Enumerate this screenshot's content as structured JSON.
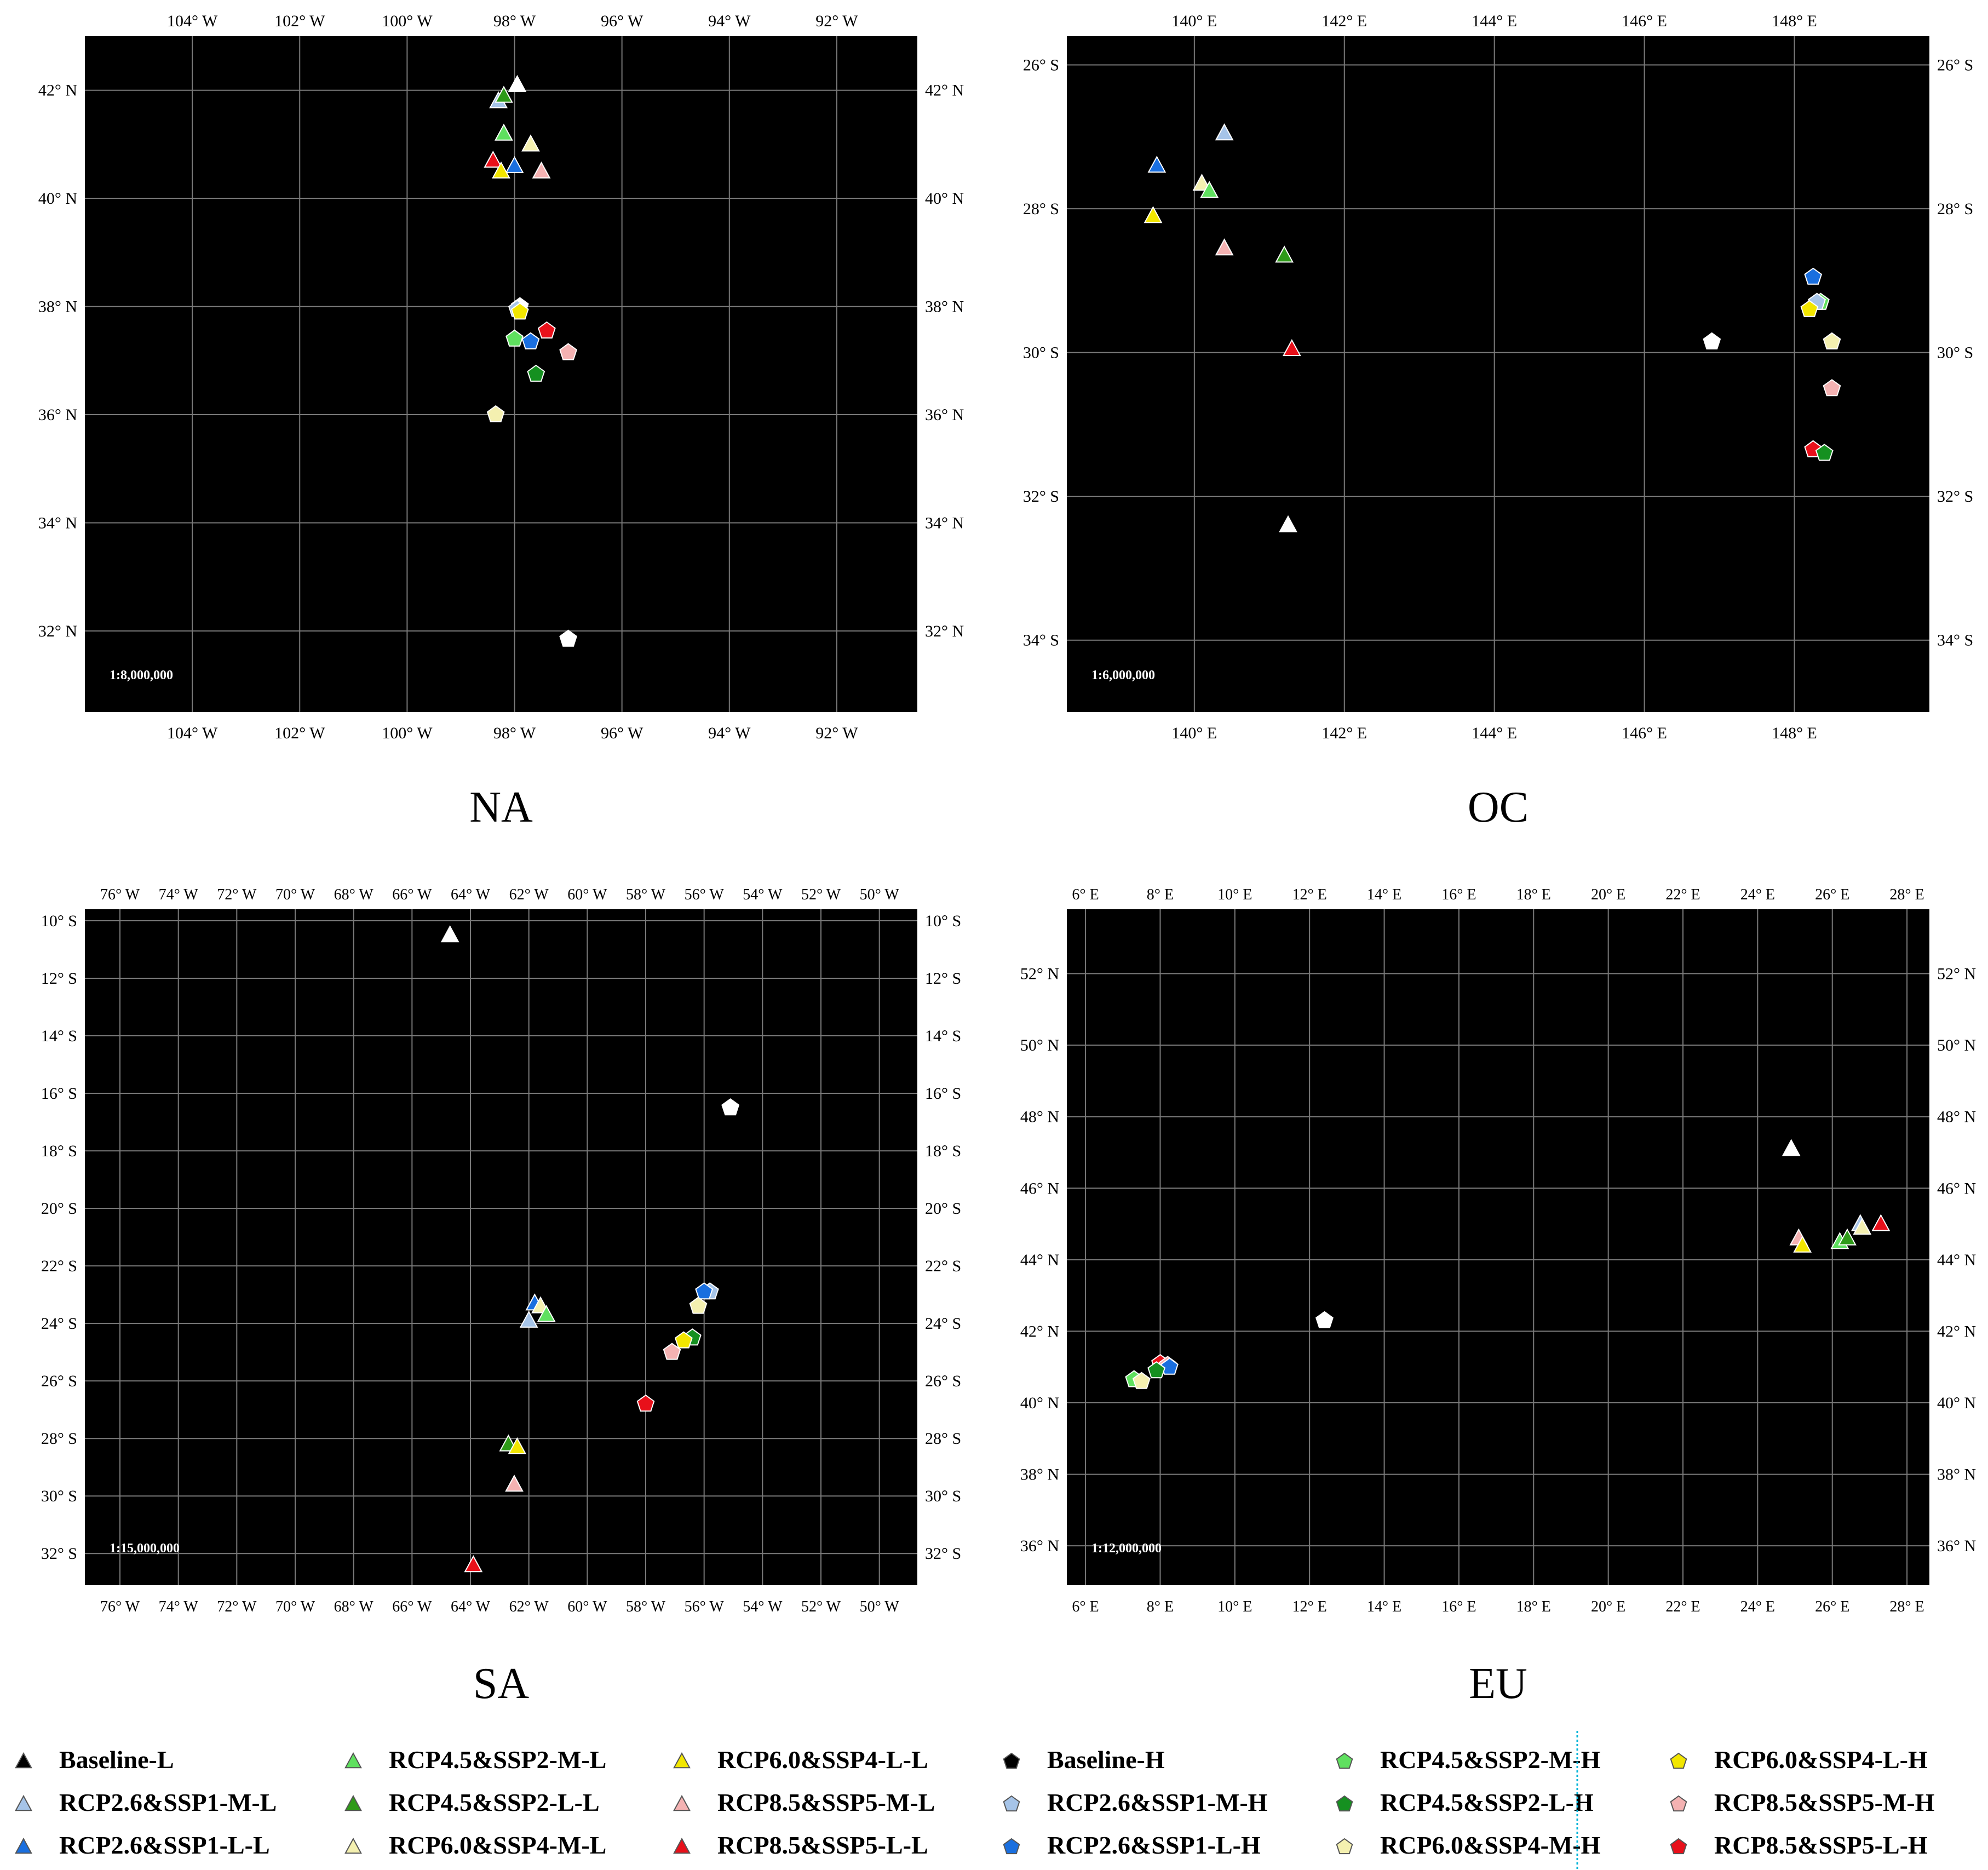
{
  "chart_data": [
    {
      "type": "scatter",
      "title": "NA",
      "scale_text": "1:8,000,000",
      "lon_range": [
        -106,
        -90.5
      ],
      "lat_range": [
        30.5,
        43
      ],
      "lon_ticks": [
        {
          "v": -104,
          "label": "104° W"
        },
        {
          "v": -102,
          "label": "102° W"
        },
        {
          "v": -100,
          "label": "100° W"
        },
        {
          "v": -98,
          "label": "98° W"
        },
        {
          "v": -96,
          "label": "96° W"
        },
        {
          "v": -94,
          "label": "94° W"
        },
        {
          "v": -92,
          "label": "92° W"
        }
      ],
      "lat_ticks": [
        {
          "v": 32,
          "label": "32° N"
        },
        {
          "v": 34,
          "label": "34° N"
        },
        {
          "v": 36,
          "label": "36° N"
        },
        {
          "v": 38,
          "label": "38° N"
        },
        {
          "v": 40,
          "label": "40° N"
        },
        {
          "v": 42,
          "label": "42° N"
        }
      ],
      "points": [
        {
          "s": "Baseline-L",
          "lon": -97.95,
          "lat": 42.1
        },
        {
          "s": "RCP2.6&SSP1-M-L",
          "lon": -98.3,
          "lat": 41.8
        },
        {
          "s": "RCP4.5&SSP2-L-L",
          "lon": -98.2,
          "lat": 41.9
        },
        {
          "s": "RCP4.5&SSP2-M-L",
          "lon": -98.2,
          "lat": 41.2
        },
        {
          "s": "RCP6.0&SSP4-M-L",
          "lon": -97.7,
          "lat": 41.0
        },
        {
          "s": "RCP8.5&SSP5-L-L",
          "lon": -98.4,
          "lat": 40.7
        },
        {
          "s": "RCP2.6&SSP1-L-L",
          "lon": -98.0,
          "lat": 40.6
        },
        {
          "s": "RCP6.0&SSP4-L-L",
          "lon": -98.25,
          "lat": 40.5
        },
        {
          "s": "RCP8.5&SSP5-M-L",
          "lon": -97.5,
          "lat": 40.5
        },
        {
          "s": "Baseline-H",
          "lon": -97.9,
          "lat": 38.0
        },
        {
          "s": "RCP2.6&SSP1-M-H",
          "lon": -97.95,
          "lat": 37.95
        },
        {
          "s": "RCP6.0&SSP4-L-H",
          "lon": -97.9,
          "lat": 37.9
        },
        {
          "s": "RCP8.5&SSP5-L-H",
          "lon": -97.4,
          "lat": 37.55
        },
        {
          "s": "RCP4.5&SSP2-M-H",
          "lon": -98.0,
          "lat": 37.4
        },
        {
          "s": "RCP2.6&SSP1-L-H",
          "lon": -97.7,
          "lat": 37.35
        },
        {
          "s": "RCP8.5&SSP5-M-H",
          "lon": -97.0,
          "lat": 37.15
        },
        {
          "s": "RCP4.5&SSP2-L-H",
          "lon": -97.6,
          "lat": 36.75
        },
        {
          "s": "RCP6.0&SSP4-M-H",
          "lon": -98.35,
          "lat": 36.0
        },
        {
          "s": "Baseline-H",
          "lon": -97.0,
          "lat": 31.85
        }
      ]
    },
    {
      "type": "scatter",
      "title": "OC",
      "scale_text": "1:6,000,000",
      "lon_range": [
        138.3,
        149.8
      ],
      "lat_range": [
        -35,
        -25.6
      ],
      "lon_ticks": [
        {
          "v": 140,
          "label": "140° E"
        },
        {
          "v": 142,
          "label": "142° E"
        },
        {
          "v": 144,
          "label": "144° E"
        },
        {
          "v": 146,
          "label": "146° E"
        },
        {
          "v": 148,
          "label": "148° E"
        }
      ],
      "lat_ticks": [
        {
          "v": -26,
          "label": "26° S"
        },
        {
          "v": -28,
          "label": "28° S"
        },
        {
          "v": -30,
          "label": "30° S"
        },
        {
          "v": -32,
          "label": "32° S"
        },
        {
          "v": -34,
          "label": "34° S"
        }
      ],
      "points": [
        {
          "s": "RCP2.6&SSP1-M-L",
          "lon": 140.4,
          "lat": -26.95
        },
        {
          "s": "RCP2.6&SSP1-L-L",
          "lon": 139.5,
          "lat": -27.4
        },
        {
          "s": "RCP6.0&SSP4-M-L",
          "lon": 140.1,
          "lat": -27.65
        },
        {
          "s": "RCP4.5&SSP2-M-L",
          "lon": 140.2,
          "lat": -27.75
        },
        {
          "s": "RCP6.0&SSP4-L-L",
          "lon": 139.45,
          "lat": -28.1
        },
        {
          "s": "RCP8.5&SSP5-M-L",
          "lon": 140.4,
          "lat": -28.55
        },
        {
          "s": "RCP4.5&SSP2-L-L",
          "lon": 141.2,
          "lat": -28.65
        },
        {
          "s": "RCP8.5&SSP5-L-L",
          "lon": 141.3,
          "lat": -29.95
        },
        {
          "s": "Baseline-L",
          "lon": 141.25,
          "lat": -32.4
        },
        {
          "s": "RCP2.6&SSP1-L-H",
          "lon": 148.25,
          "lat": -28.95
        },
        {
          "s": "RCP4.5&SSP2-M-H",
          "lon": 148.35,
          "lat": -29.3
        },
        {
          "s": "RCP2.6&SSP1-M-H",
          "lon": 148.3,
          "lat": -29.3
        },
        {
          "s": "RCP6.0&SSP4-L-H",
          "lon": 148.2,
          "lat": -29.4
        },
        {
          "s": "Baseline-H",
          "lon": 146.9,
          "lat": -29.85
        },
        {
          "s": "RCP6.0&SSP4-M-H",
          "lon": 148.5,
          "lat": -29.85
        },
        {
          "s": "RCP8.5&SSP5-M-H",
          "lon": 148.5,
          "lat": -30.5
        },
        {
          "s": "RCP8.5&SSP5-L-H",
          "lon": 148.25,
          "lat": -31.35
        },
        {
          "s": "RCP4.5&SSP2-L-H",
          "lon": 148.4,
          "lat": -31.4
        }
      ]
    },
    {
      "type": "scatter",
      "title": "SA",
      "scale_text": "1:15,000,000",
      "lon_range": [
        -77.2,
        -48.7
      ],
      "lat_range": [
        -33.1,
        -9.6
      ],
      "lon_ticks": [
        {
          "v": -76,
          "label": "76° W"
        },
        {
          "v": -74,
          "label": "74° W"
        },
        {
          "v": -72,
          "label": "72° W"
        },
        {
          "v": -70,
          "label": "70° W"
        },
        {
          "v": -68,
          "label": "68° W"
        },
        {
          "v": -66,
          "label": "66° W"
        },
        {
          "v": -64,
          "label": "64° W"
        },
        {
          "v": -62,
          "label": "62° W"
        },
        {
          "v": -60,
          "label": "60° W"
        },
        {
          "v": -58,
          "label": "58° W"
        },
        {
          "v": -56,
          "label": "56° W"
        },
        {
          "v": -54,
          "label": "54° W"
        },
        {
          "v": -52,
          "label": "52° W"
        },
        {
          "v": -50,
          "label": "50° W"
        }
      ],
      "lat_ticks": [
        {
          "v": -10,
          "label": "10° S"
        },
        {
          "v": -12,
          "label": "12° S"
        },
        {
          "v": -14,
          "label": "14° S"
        },
        {
          "v": -16,
          "label": "16° S"
        },
        {
          "v": -18,
          "label": "18° S"
        },
        {
          "v": -20,
          "label": "20° S"
        },
        {
          "v": -22,
          "label": "22° S"
        },
        {
          "v": -24,
          "label": "24° S"
        },
        {
          "v": -26,
          "label": "26° S"
        },
        {
          "v": -28,
          "label": "28° S"
        },
        {
          "v": -30,
          "label": "30° S"
        },
        {
          "v": -32,
          "label": "32° S"
        }
      ],
      "points": [
        {
          "s": "Baseline-L",
          "lon": -64.7,
          "lat": -10.5
        },
        {
          "s": "Baseline-H",
          "lon": -55.1,
          "lat": -16.5
        },
        {
          "s": "RCP2.6&SSP1-L-L",
          "lon": -61.8,
          "lat": -23.3
        },
        {
          "s": "RCP6.0&SSP4-M-L",
          "lon": -61.6,
          "lat": -23.4
        },
        {
          "s": "RCP4.5&SSP2-M-L",
          "lon": -61.4,
          "lat": -23.7
        },
        {
          "s": "RCP2.6&SSP1-M-L",
          "lon": -62.0,
          "lat": -23.9
        },
        {
          "s": "RCP2.6&SSP1-M-H",
          "lon": -55.8,
          "lat": -22.9
        },
        {
          "s": "RCP2.6&SSP1-L-H",
          "lon": -56.0,
          "lat": -22.9
        },
        {
          "s": "RCP6.0&SSP4-M-H",
          "lon": -56.2,
          "lat": -23.4
        },
        {
          "s": "RCP4.5&SSP2-L-H",
          "lon": -56.4,
          "lat": -24.5
        },
        {
          "s": "RCP6.0&SSP4-L-H",
          "lon": -56.7,
          "lat": -24.6
        },
        {
          "s": "RCP8.5&SSP5-M-H",
          "lon": -57.1,
          "lat": -25.0
        },
        {
          "s": "RCP8.5&SSP5-L-H",
          "lon": -58.0,
          "lat": -26.8
        },
        {
          "s": "RCP4.5&SSP2-L-L",
          "lon": -62.7,
          "lat": -28.2
        },
        {
          "s": "RCP6.0&SSP4-L-L",
          "lon": -62.4,
          "lat": -28.3
        },
        {
          "s": "RCP8.5&SSP5-M-L",
          "lon": -62.5,
          "lat": -29.6
        },
        {
          "s": "RCP8.5&SSP5-L-L",
          "lon": -63.9,
          "lat": -32.4
        }
      ]
    },
    {
      "type": "scatter",
      "title": "EU",
      "scale_text": "1:12,000,000",
      "lon_range": [
        5.5,
        28.6
      ],
      "lat_range": [
        34.9,
        53.8
      ],
      "lon_ticks": [
        {
          "v": 6,
          "label": "6° E"
        },
        {
          "v": 8,
          "label": "8° E"
        },
        {
          "v": 10,
          "label": "10° E"
        },
        {
          "v": 12,
          "label": "12° E"
        },
        {
          "v": 14,
          "label": "14° E"
        },
        {
          "v": 16,
          "label": "16° E"
        },
        {
          "v": 18,
          "label": "18° E"
        },
        {
          "v": 20,
          "label": "20° E"
        },
        {
          "v": 22,
          "label": "22° E"
        },
        {
          "v": 24,
          "label": "24° E"
        },
        {
          "v": 26,
          "label": "26° E"
        },
        {
          "v": 28,
          "label": "28° E"
        }
      ],
      "lat_ticks": [
        {
          "v": 36,
          "label": "36° N"
        },
        {
          "v": 38,
          "label": "38° N"
        },
        {
          "v": 40,
          "label": "40° N"
        },
        {
          "v": 42,
          "label": "42° N"
        },
        {
          "v": 44,
          "label": "44° N"
        },
        {
          "v": 46,
          "label": "46° N"
        },
        {
          "v": 48,
          "label": "48° N"
        },
        {
          "v": 50,
          "label": "50° N"
        },
        {
          "v": 52,
          "label": "52° N"
        }
      ],
      "points": [
        {
          "s": "Baseline-L",
          "lon": 24.9,
          "lat": 47.1
        },
        {
          "s": "RCP8.5&SSP5-M-L",
          "lon": 25.1,
          "lat": 44.6
        },
        {
          "s": "RCP6.0&SSP4-L-L",
          "lon": 25.2,
          "lat": 44.4
        },
        {
          "s": "RCP4.5&SSP2-M-L",
          "lon": 26.2,
          "lat": 44.5
        },
        {
          "s": "RCP4.5&SSP2-L-L",
          "lon": 26.4,
          "lat": 44.6
        },
        {
          "s": "RCP2.6&SSP1-M-L",
          "lon": 26.75,
          "lat": 45.0
        },
        {
          "s": "RCP6.0&SSP4-M-L",
          "lon": 26.8,
          "lat": 44.9
        },
        {
          "s": "RCP8.5&SSP5-L-L",
          "lon": 27.3,
          "lat": 45.0
        },
        {
          "s": "Baseline-H",
          "lon": 12.4,
          "lat": 42.3
        },
        {
          "s": "RCP8.5&SSP5-L-H",
          "lon": 8.0,
          "lat": 41.1
        },
        {
          "s": "RCP8.5&SSP5-M-H",
          "lon": 8.2,
          "lat": 41.05
        },
        {
          "s": "RCP2.6&SSP1-L-H",
          "lon": 8.25,
          "lat": 41.0
        },
        {
          "s": "RCP4.5&SSP2-L-H",
          "lon": 7.9,
          "lat": 40.9
        },
        {
          "s": "RCP4.5&SSP2-M-H",
          "lon": 7.3,
          "lat": 40.65
        },
        {
          "s": "RCP6.0&SSP4-M-H",
          "lon": 7.5,
          "lat": 40.6
        }
      ]
    }
  ],
  "legend": [
    {
      "label": "Baseline-L",
      "shape": "triangle",
      "fill": "#000000",
      "stroke": "#ffffff"
    },
    {
      "label": "RCP2.6&SSP1-M-L",
      "shape": "triangle",
      "fill": "#a6c4e8",
      "stroke": "#ffffff"
    },
    {
      "label": "RCP2.6&SSP1-L-L",
      "shape": "triangle",
      "fill": "#1a6fdf",
      "stroke": "#ffffff"
    },
    {
      "label": "RCP4.5&SSP2-M-L",
      "shape": "triangle",
      "fill": "#5fe05f",
      "stroke": "#ffffff"
    },
    {
      "label": "RCP4.5&SSP2-L-L",
      "shape": "triangle",
      "fill": "#2e9a18",
      "stroke": "#ffffff"
    },
    {
      "label": "RCP6.0&SSP4-M-L",
      "shape": "triangle",
      "fill": "#f4f0b0",
      "stroke": "#ffffff"
    },
    {
      "label": "RCP6.0&SSP4-L-L",
      "shape": "triangle",
      "fill": "#f2e600",
      "stroke": "#ffffff"
    },
    {
      "label": "RCP8.5&SSP5-M-L",
      "shape": "triangle",
      "fill": "#f4b2b2",
      "stroke": "#ffffff"
    },
    {
      "label": "RCP8.5&SSP5-L-L",
      "shape": "triangle",
      "fill": "#e8101a",
      "stroke": "#ffffff"
    },
    {
      "label": "Baseline-H",
      "shape": "pentagon",
      "fill": "#000000",
      "stroke": "#ffffff"
    },
    {
      "label": "RCP2.6&SSP1-M-H",
      "shape": "pentagon",
      "fill": "#a6c4e8",
      "stroke": "#ffffff"
    },
    {
      "label": "RCP2.6&SSP1-L-H",
      "shape": "pentagon",
      "fill": "#1a6fdf",
      "stroke": "#ffffff"
    },
    {
      "label": "RCP4.5&SSP2-M-H",
      "shape": "pentagon",
      "fill": "#5fe05f",
      "stroke": "#ffffff"
    },
    {
      "label": "RCP4.5&SSP2-L-H",
      "shape": "pentagon",
      "fill": "#159020",
      "stroke": "#ffffff"
    },
    {
      "label": "RCP6.0&SSP4-M-H",
      "shape": "pentagon",
      "fill": "#f4f0b0",
      "stroke": "#ffffff"
    },
    {
      "label": "RCP6.0&SSP4-L-H",
      "shape": "pentagon",
      "fill": "#f2e600",
      "stroke": "#ffffff"
    },
    {
      "label": "RCP8.5&SSP5-M-H",
      "shape": "pentagon",
      "fill": "#f4b2b2",
      "stroke": "#ffffff"
    },
    {
      "label": "RCP8.5&SSP5-L-H",
      "shape": "pentagon",
      "fill": "#e8101a",
      "stroke": "#ffffff"
    }
  ],
  "colors": {
    "map_background": "#000000",
    "gridline": "#7a7a7a",
    "baseline_marker_fill_in_map": "#ffffff",
    "page_background": "#ffffff"
  }
}
